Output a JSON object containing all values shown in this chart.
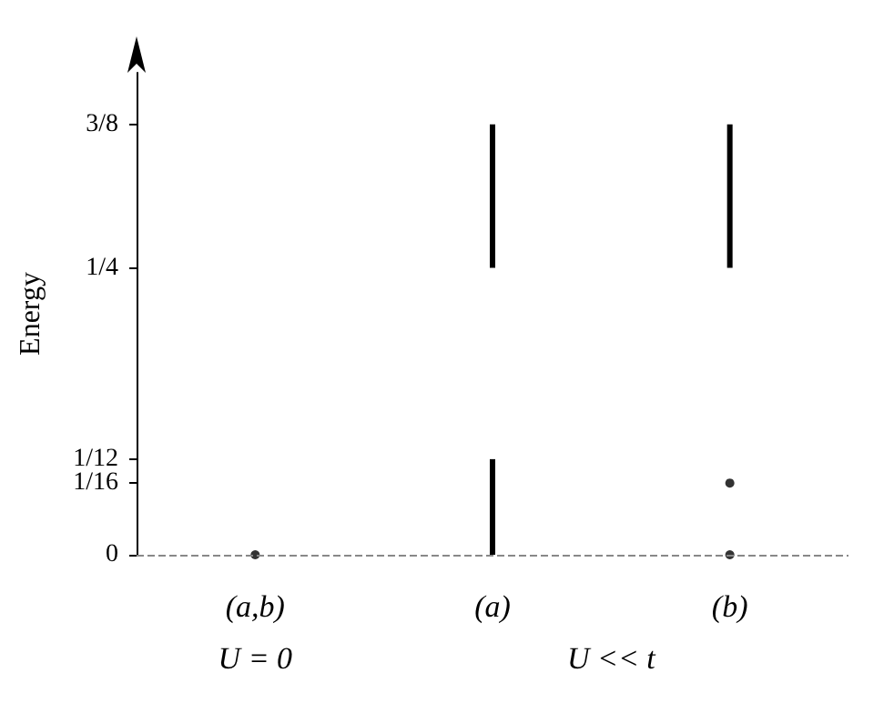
{
  "chart_data": {
    "type": "bar",
    "ylabel": "Energy",
    "categories": [
      "(a,b)",
      "(a)",
      "(b)"
    ],
    "series": [
      {
        "color": "#000000",
        "values": [
          null,
          0.0833,
          null
        ],
        "base": [
          null,
          0,
          null
        ]
      },
      {
        "color": "#000000",
        "values": [
          null,
          0.125,
          0.125
        ],
        "base": [
          null,
          0.25,
          0.25
        ]
      },
      {
        "type": "scatter",
        "color": "#000000",
        "x": [
          "(a,b)",
          "(b)",
          "(b)"
        ],
        "values": [
          0,
          0,
          0.0625
        ]
      }
    ],
    "ylim": [
      0,
      0.42
    ],
    "yticks": [
      0,
      {
        "value": 0.0625,
        "label": "1/16"
      },
      {
        "value": 0.0833,
        "label": "1/12"
      },
      {
        "value": 0.25,
        "label": "1/4"
      },
      {
        "value": 0.375,
        "label": "3/8"
      }
    ],
    "ref_lines": [
      {
        "axis": "y",
        "value": 0,
        "color": "#888888",
        "line_style": "dashed"
      }
    ],
    "annotations": [
      "U = 0",
      "U << t"
    ],
    "grid": false,
    "marker": "circle"
  }
}
